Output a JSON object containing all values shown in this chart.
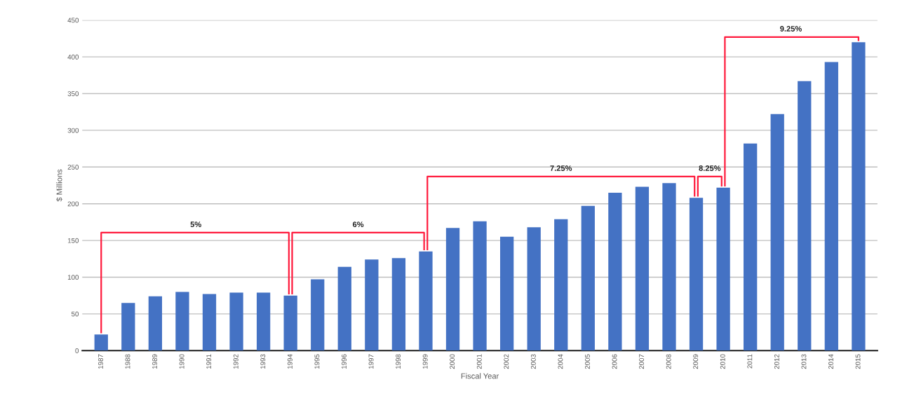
{
  "chart_data": {
    "type": "bar",
    "xlabel": "Fiscal Year",
    "ylabel": "$ Millions",
    "categories": [
      "1987",
      "1988",
      "1989",
      "1990",
      "1991",
      "1992",
      "1993",
      "1994",
      "1995",
      "1996",
      "1997",
      "1998",
      "1999",
      "2000",
      "2001",
      "2002",
      "2003",
      "2004",
      "2005",
      "2006",
      "2007",
      "2008",
      "2009",
      "2010",
      "2011",
      "2012",
      "2013",
      "2014",
      "2015"
    ],
    "values": [
      22,
      65,
      74,
      80,
      77,
      79,
      79,
      75,
      97,
      114,
      124,
      126,
      135,
      167,
      176,
      155,
      168,
      179,
      197,
      215,
      223,
      228,
      208,
      222,
      282,
      322,
      367,
      393,
      420
    ],
    "color": "#4472c4",
    "ylim": [
      0,
      450
    ],
    "yticks": [
      0,
      50,
      100,
      150,
      200,
      250,
      300,
      350,
      400,
      450
    ],
    "grid": "y",
    "legend": false,
    "annotations": [
      "5%",
      "6%",
      "7.25%",
      "8.25%",
      "9.25%"
    ]
  }
}
